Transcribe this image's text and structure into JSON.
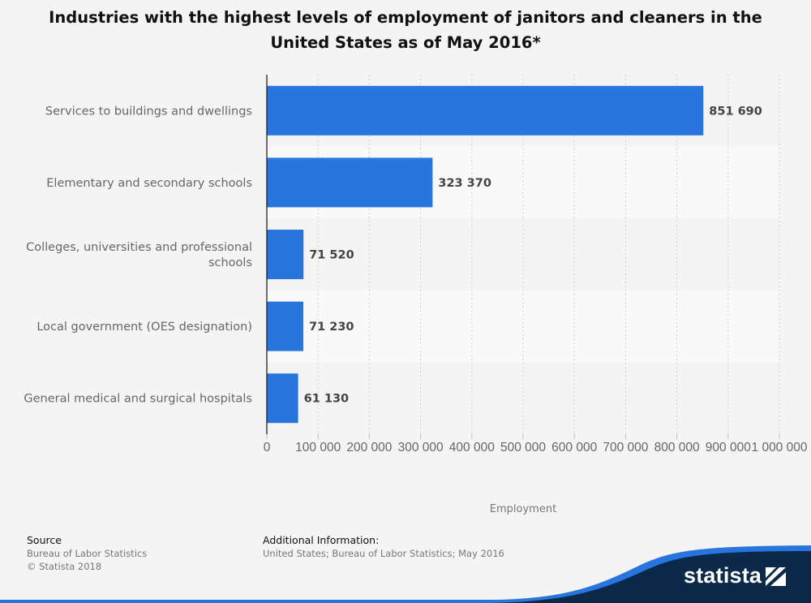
{
  "chart_data": {
    "type": "bar",
    "orientation": "horizontal",
    "title": "Industries with the highest levels of employment of janitors and cleaners in the United States as of May 2016*",
    "title_lines": [
      "Industries with the highest levels of employment of janitors and cleaners in the",
      "United States as of May 2016*"
    ],
    "categories": [
      "Services to buildings and dwellings",
      "Elementary and secondary schools",
      "Colleges, universities and professional schools",
      "Local government (OES designation)",
      "General medical and surgical hospitals"
    ],
    "category_lines": [
      [
        "Services to buildings and dwellings"
      ],
      [
        "Elementary and secondary schools"
      ],
      [
        "Colleges, universities and professional",
        "schools"
      ],
      [
        "Local government (OES designation)"
      ],
      [
        "General medical and surgical hospitals"
      ]
    ],
    "values": [
      851690,
      323370,
      71520,
      71230,
      61130
    ],
    "value_labels": [
      "851 690",
      "323 370",
      "71 520",
      "71 230",
      "61 130"
    ],
    "xlim": [
      0,
      1000000
    ],
    "xticks": [
      0,
      100000,
      200000,
      300000,
      400000,
      500000,
      600000,
      700000,
      800000,
      900000,
      1000000
    ],
    "xtick_labels": [
      "0",
      "100 000",
      "200 000",
      "300 000",
      "400 000",
      "500 000",
      "600 000",
      "700 000",
      "800 000",
      "900 000",
      "1 000 000"
    ],
    "xlabel": "Employment",
    "ylabel": "",
    "grid": true,
    "bar_color": "#2876dd"
  },
  "footer": {
    "source_heading": "Source",
    "source_lines": [
      "Bureau of Labor Statistics",
      "© Statista 2018"
    ],
    "additional_heading": "Additional Information:",
    "additional_text": "United States; Bureau of Labor Statistics; May 2016"
  },
  "brand": {
    "name": "statista",
    "wave_color": "#0b2a4a",
    "accent_color": "#2876dd"
  }
}
